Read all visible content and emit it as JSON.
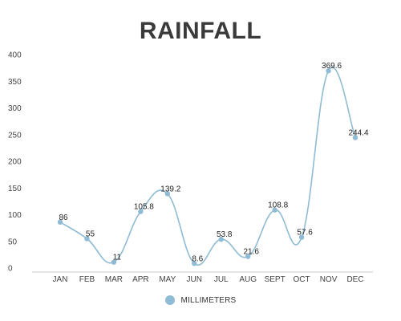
{
  "chart_data": {
    "type": "line",
    "title": "RAINFALL",
    "categories": [
      "JAN",
      "FEB",
      "MAR",
      "APR",
      "MAY",
      "JUN",
      "JUL",
      "AUG",
      "SEPT",
      "OCT",
      "NOV",
      "DEC"
    ],
    "series": [
      {
        "name": "MILLIMETERS",
        "values": [
          86,
          55,
          11,
          105.8,
          139.2,
          8.6,
          53.8,
          21.6,
          108.8,
          57.6,
          369.6,
          244.4
        ]
      }
    ],
    "data_labels": [
      "86",
      "55",
      "11",
      "105.8",
      "139.2",
      "8.6",
      "53.8",
      "21.6",
      "108.8",
      "57.6",
      "369.6",
      "244.4"
    ],
    "y_ticks": [
      "0",
      "50",
      "100",
      "150",
      "200",
      "250",
      "300",
      "350",
      "400"
    ],
    "ylim": [
      0,
      400
    ],
    "xlabel": "",
    "ylabel": "",
    "grid": false,
    "smooth": true,
    "legend_position": "bottom-center",
    "colors": {
      "line": "#8fbcd4",
      "marker": "#8fbcd4",
      "axis": "#cccccc"
    }
  }
}
